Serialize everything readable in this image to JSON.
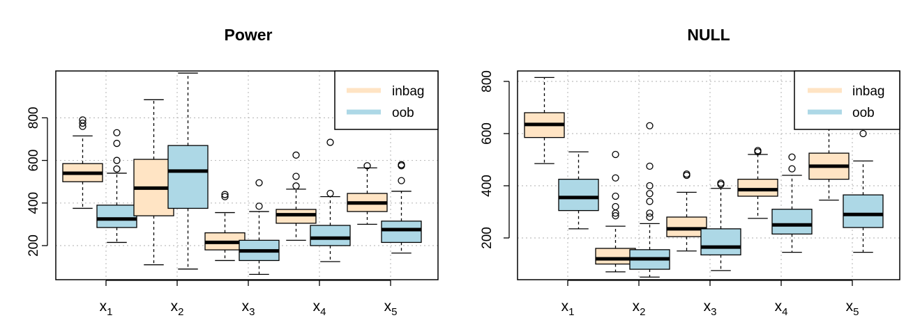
{
  "colors": {
    "inbag": "#FFE4C4",
    "oob": "#ADD8E6",
    "grid": "#BEBEBE",
    "ink": "#000000"
  },
  "chart_data": [
    {
      "type": "boxplot",
      "title": "Power",
      "ylim": [
        40,
        1020
      ],
      "yticks": [
        200,
        400,
        600,
        800
      ],
      "grid": true,
      "legend_position": "top-right",
      "categories": [
        {
          "base": "x",
          "sub": "1"
        },
        {
          "base": "x",
          "sub": "2"
        },
        {
          "base": "x",
          "sub": "3"
        },
        {
          "base": "x",
          "sub": "4"
        },
        {
          "base": "x",
          "sub": "5"
        }
      ],
      "series": [
        {
          "name": "inbag",
          "boxes": [
            {
              "low": 375,
              "q1": 500,
              "median": 540,
              "q3": 585,
              "high": 715,
              "outliers": [
                760,
                775,
                790
              ]
            },
            {
              "low": 110,
              "q1": 340,
              "median": 470,
              "q3": 605,
              "high": 885,
              "outliers": []
            },
            {
              "low": 130,
              "q1": 180,
              "median": 215,
              "q3": 260,
              "high": 355,
              "outliers": [
                430,
                440
              ]
            },
            {
              "low": 225,
              "q1": 305,
              "median": 345,
              "q3": 370,
              "high": 465,
              "outliers": [
                480,
                525,
                625
              ]
            },
            {
              "low": 300,
              "q1": 360,
              "median": 400,
              "q3": 445,
              "high": 565,
              "outliers": [
                575
              ]
            }
          ]
        },
        {
          "name": "oob",
          "boxes": [
            {
              "low": 215,
              "q1": 285,
              "median": 325,
              "q3": 390,
              "high": 540,
              "outliers": [
                560,
                600,
                680,
                730
              ]
            },
            {
              "low": 90,
              "q1": 375,
              "median": 550,
              "q3": 670,
              "high": 1010,
              "outliers": []
            },
            {
              "low": 65,
              "q1": 130,
              "median": 175,
              "q3": 225,
              "high": 360,
              "outliers": [
                385,
                495
              ]
            },
            {
              "low": 125,
              "q1": 200,
              "median": 235,
              "q3": 295,
              "high": 430,
              "outliers": [
                445,
                685
              ]
            },
            {
              "low": 165,
              "q1": 215,
              "median": 275,
              "q3": 315,
              "high": 455,
              "outliers": [
                505,
                575,
                580
              ]
            }
          ]
        }
      ]
    },
    {
      "type": "boxplot",
      "title": "NULL",
      "ylim": [
        40,
        840
      ],
      "yticks": [
        200,
        400,
        600,
        800
      ],
      "grid": true,
      "legend_position": "top-right",
      "categories": [
        {
          "base": "x",
          "sub": "1"
        },
        {
          "base": "x",
          "sub": "2"
        },
        {
          "base": "x",
          "sub": "3"
        },
        {
          "base": "x",
          "sub": "4"
        },
        {
          "base": "x",
          "sub": "5"
        }
      ],
      "series": [
        {
          "name": "inbag",
          "boxes": [
            {
              "low": 485,
              "q1": 585,
              "median": 635,
              "q3": 680,
              "high": 815,
              "outliers": []
            },
            {
              "low": 70,
              "q1": 100,
              "median": 120,
              "q3": 160,
              "high": 245,
              "outliers": [
                285,
                295,
                320,
                360,
                430,
                520
              ]
            },
            {
              "low": 150,
              "q1": 205,
              "median": 235,
              "q3": 280,
              "high": 375,
              "outliers": [
                440,
                445
              ]
            },
            {
              "low": 275,
              "q1": 360,
              "median": 385,
              "q3": 425,
              "high": 520,
              "outliers": [
                530,
                535
              ]
            },
            {
              "low": 345,
              "q1": 425,
              "median": 475,
              "q3": 525,
              "high": 645,
              "outliers": []
            }
          ]
        },
        {
          "name": "oob",
          "boxes": [
            {
              "low": 235,
              "q1": 305,
              "median": 355,
              "q3": 425,
              "high": 530,
              "outliers": []
            },
            {
              "low": 50,
              "q1": 80,
              "median": 120,
              "q3": 155,
              "high": 255,
              "outliers": [
                280,
                295,
                340,
                370,
                400,
                475,
                630
              ]
            },
            {
              "low": 75,
              "q1": 135,
              "median": 165,
              "q3": 235,
              "high": 390,
              "outliers": [
                405,
                410
              ]
            },
            {
              "low": 145,
              "q1": 215,
              "median": 250,
              "q3": 310,
              "high": 440,
              "outliers": [
                465,
                510
              ]
            },
            {
              "low": 145,
              "q1": 240,
              "median": 290,
              "q3": 365,
              "high": 495,
              "outliers": [
                600
              ]
            }
          ]
        }
      ]
    }
  ]
}
